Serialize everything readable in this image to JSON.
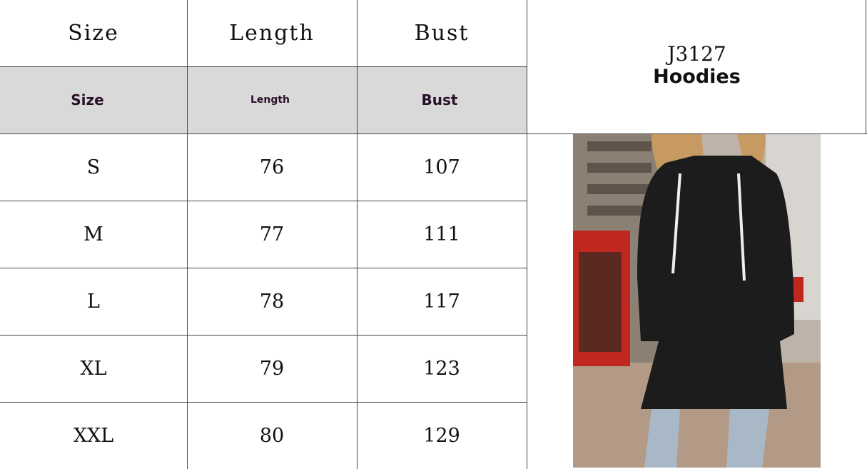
{
  "product": {
    "code": "J3127",
    "name": "Hoodies"
  },
  "header_row": [
    "Size",
    "Length",
    "Bust"
  ],
  "subheader_row": [
    "Size",
    "Length",
    "Bust"
  ],
  "rows": [
    {
      "size": "S",
      "length": "76",
      "bust": "107"
    },
    {
      "size": "M",
      "length": "77",
      "bust": "111"
    },
    {
      "size": "L",
      "length": "78",
      "bust": "117"
    },
    {
      "size": "XL",
      "length": "79",
      "bust": "123"
    },
    {
      "size": "XXL",
      "length": "80",
      "bust": "129"
    }
  ],
  "colors": {
    "subheader_bg": "#d9d9d9",
    "subheader_text": "#2a0f2a",
    "hoodie": "#1c1c1c"
  }
}
